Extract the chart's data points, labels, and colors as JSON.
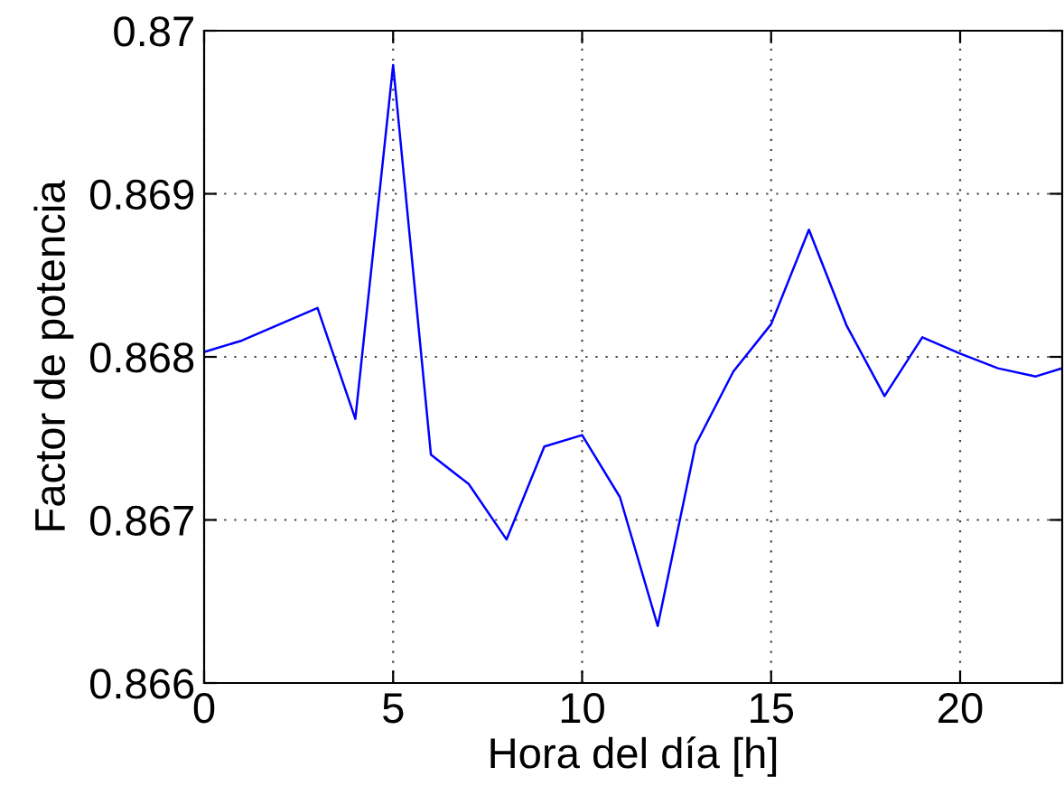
{
  "chart_data": {
    "type": "line",
    "xlabel": "Hora del día [h]",
    "ylabel": "Factor de potencia",
    "x": [
      0,
      1,
      2,
      3,
      4,
      5,
      6,
      7,
      8,
      9,
      10,
      11,
      12,
      13,
      14,
      15,
      16,
      17,
      18,
      19,
      20,
      21,
      22,
      22.7
    ],
    "series": [
      {
        "color": "#0000ff",
        "values": [
          0.86803,
          0.8681,
          0.8682,
          0.8683,
          0.86762,
          0.86979,
          0.8674,
          0.86722,
          0.86688,
          0.86745,
          0.86752,
          0.86714,
          0.86635,
          0.86746,
          0.86791,
          0.8682,
          0.86878,
          0.86819,
          0.86776,
          0.86812,
          0.86802,
          0.86793,
          0.86788,
          0.86793
        ]
      }
    ],
    "xlim": [
      0,
      22.7
    ],
    "xticks": [
      0,
      5,
      10,
      15,
      20
    ],
    "ylim": [
      0.866,
      0.87
    ],
    "yticks": [
      0.866,
      0.867,
      0.868,
      0.869,
      0.87
    ],
    "grid": true,
    "legend": false,
    "marker": "none",
    "line_style": "solid"
  }
}
